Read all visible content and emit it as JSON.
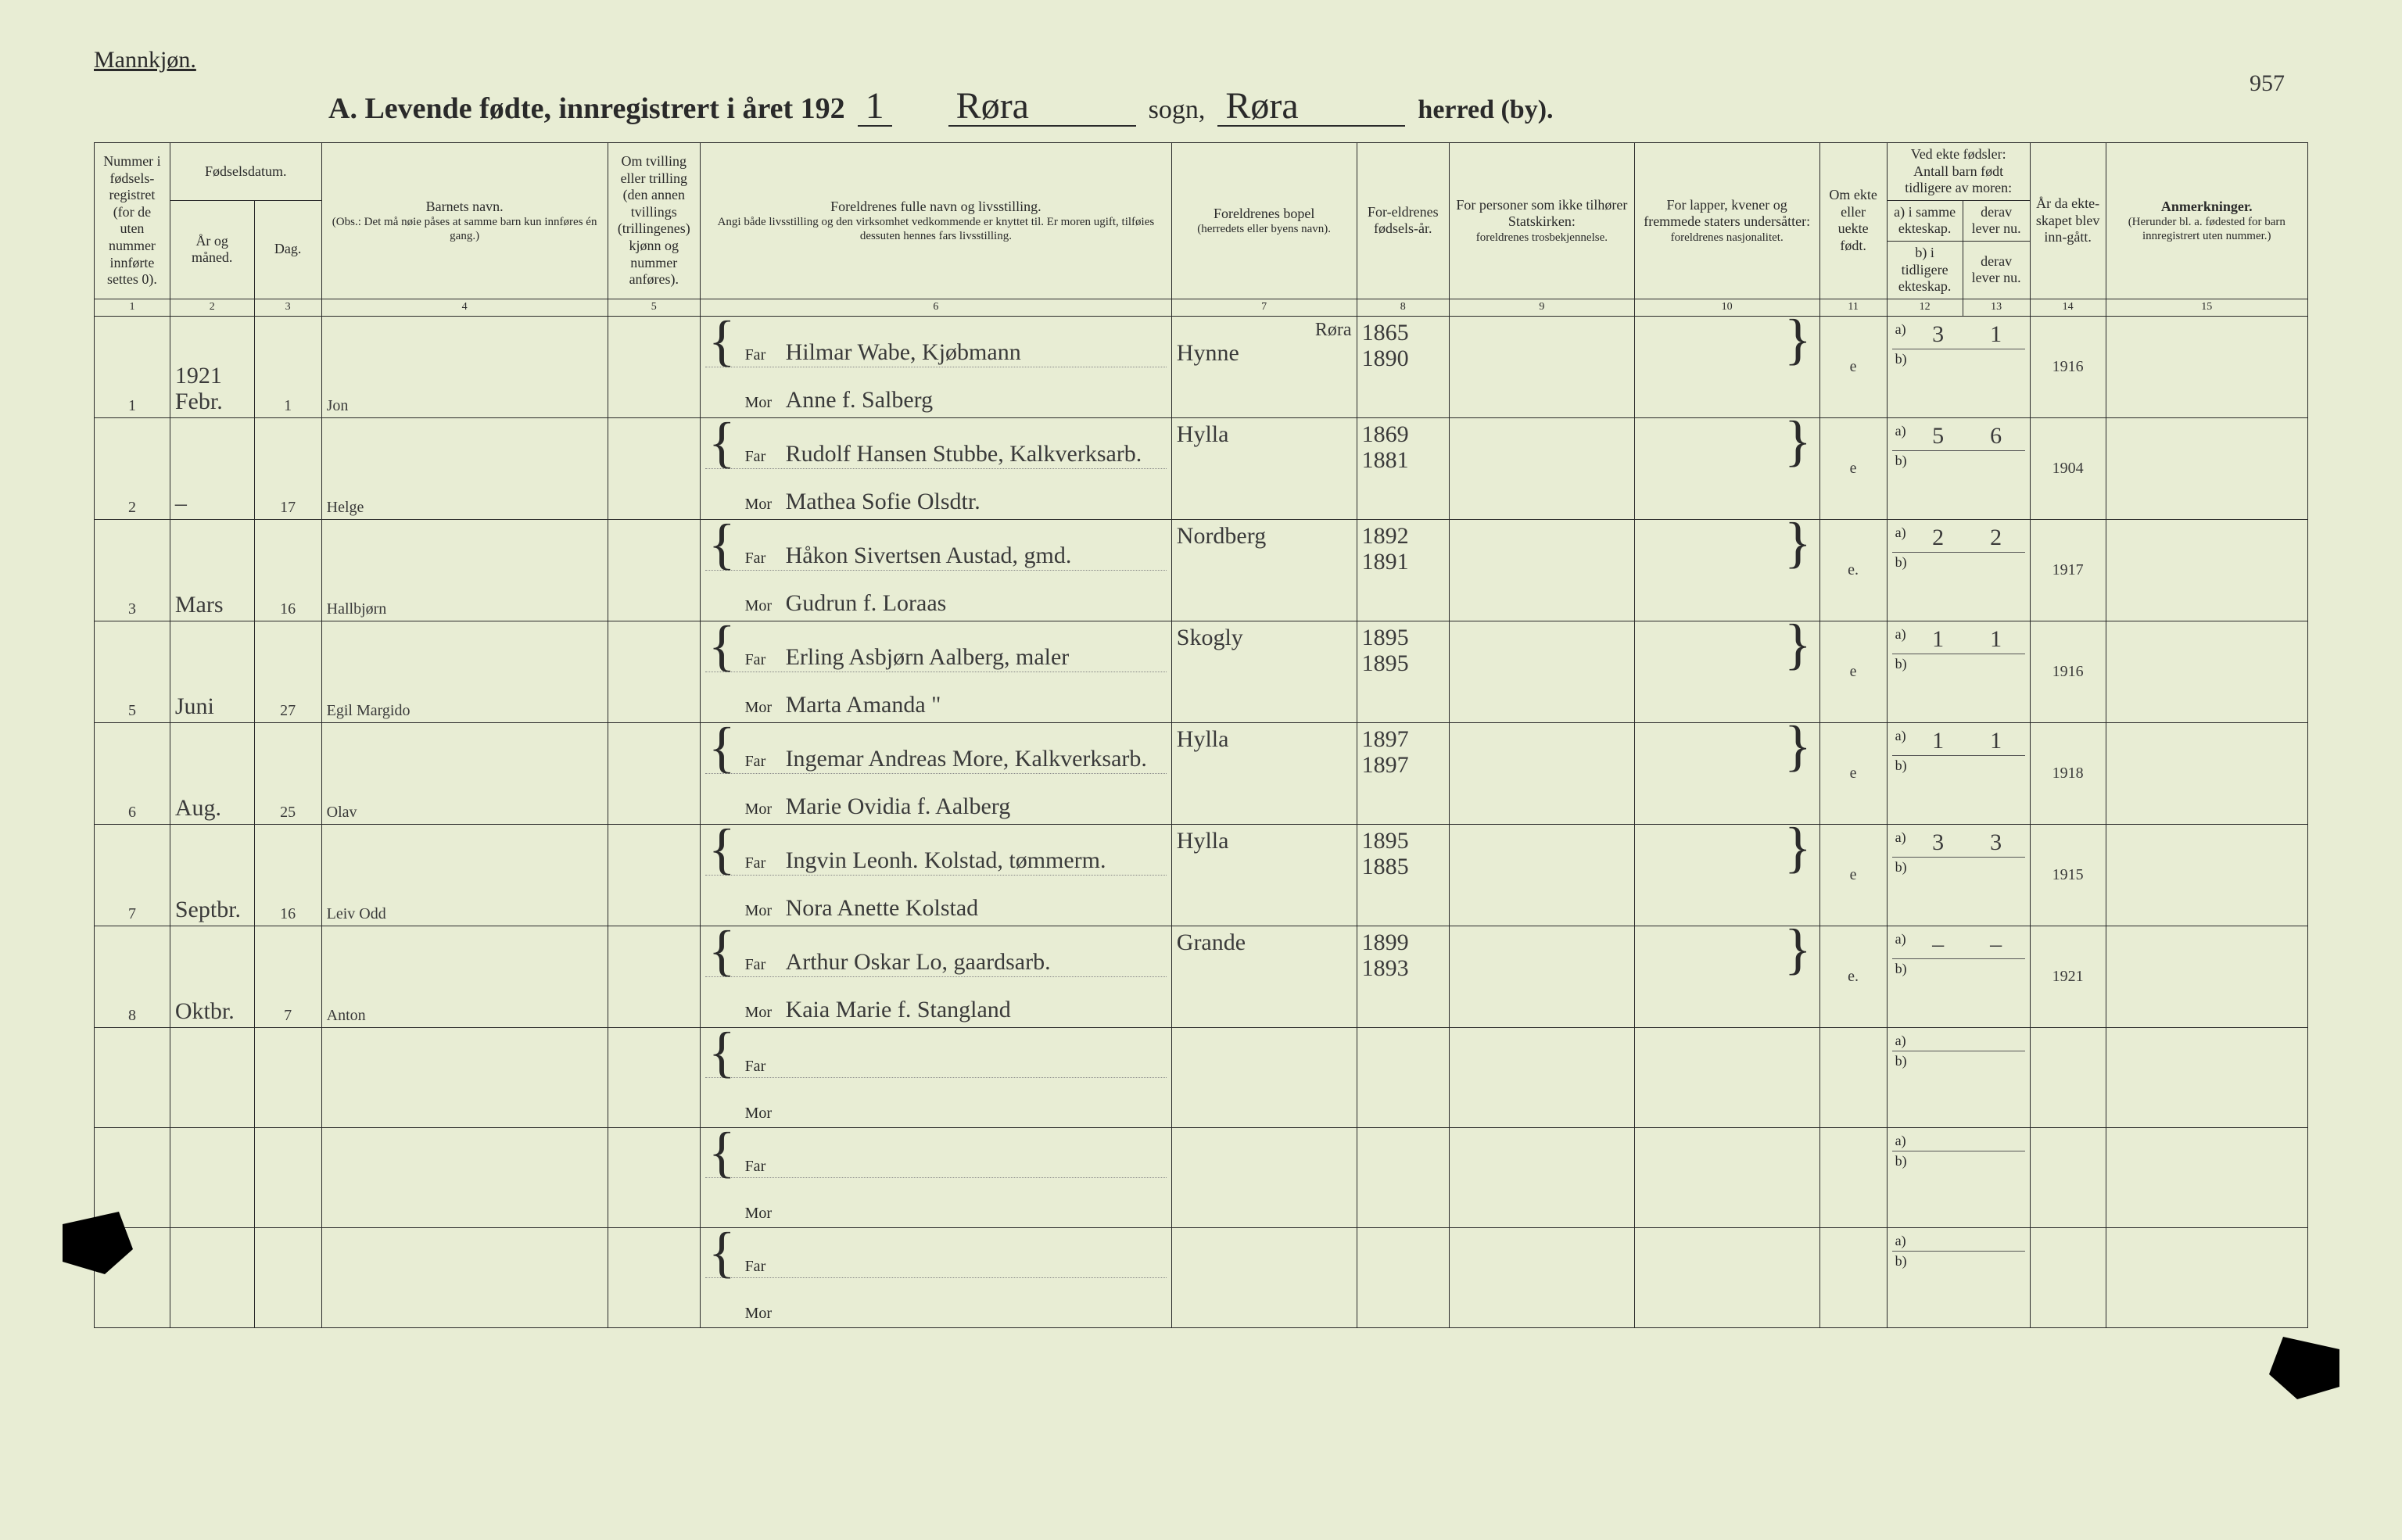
{
  "colors": {
    "paper": "#e8edd4",
    "ink": "#2a2a2a",
    "rule": "#2a2a2a",
    "script_ink": "#3a3a3a"
  },
  "typography": {
    "print_family": "Times New Roman",
    "script_family": "Brush Script MT",
    "header_fontsize_pt": 18,
    "colnum_fontsize_pt": 14,
    "body_print_fontsize_pt": 20,
    "script_fontsize_pt": 30,
    "title_fontsize_pt": 38
  },
  "page_number": "957",
  "header": {
    "gender": "Mannkjøn.",
    "title_prefix": "A.   Levende fødte, innregistrert i året 192",
    "title_year_suffix": "1",
    "sogn_label": "sogn,",
    "sogn_value": "Røra",
    "herred_label": "herred (by).",
    "herred_value": "Røra"
  },
  "columns": {
    "c1": {
      "num": "1",
      "label": "Nummer i fødsels-registret (for de uten nummer innførte settes 0)."
    },
    "c2_3_group": "Fødselsdatum.",
    "c2": {
      "num": "2",
      "label": "År og måned."
    },
    "c3": {
      "num": "3",
      "label": "Dag."
    },
    "c4": {
      "num": "4",
      "label": "Barnets navn.",
      "sub": "(Obs.: Det må nøie påses at samme barn kun innføres én gang.)"
    },
    "c5": {
      "num": "5",
      "label": "Om tvilling eller trilling (den annen tvillings (trillingenes) kjønn og nummer anføres)."
    },
    "c6": {
      "num": "6",
      "label": "Foreldrenes fulle navn og livsstilling.",
      "sub": "Angi både livsstilling og den virksomhet vedkommende er knyttet til. Er moren ugift, tilføies dessuten hennes fars livsstilling."
    },
    "c7": {
      "num": "7",
      "label": "Foreldrenes bopel",
      "sub": "(herredets eller byens navn)."
    },
    "c8": {
      "num": "8",
      "label": "For-eldrenes fødsels-år."
    },
    "c9": {
      "num": "9",
      "label": "For personer som ikke tilhører Statskirken:",
      "sub": "foreldrenes trosbekjennelse."
    },
    "c10": {
      "num": "10",
      "label": "For lapper, kvener og fremmede staters undersåtter:",
      "sub": "foreldrenes nasjonalitet."
    },
    "c11": {
      "num": "11",
      "label": "Om ekte eller uekte født."
    },
    "c12_13_group": "Ved ekte fødsler: Antall barn født tidligere av moren:",
    "c12": {
      "num": "12",
      "label": "a) i samme ekteskap."
    },
    "c13": {
      "num": "13",
      "label": "derav lever nu."
    },
    "c12b": "b) i tidligere ekteskap.",
    "c13b": "derav lever nu.",
    "c14": {
      "num": "14",
      "label": "År da ekte-skapet blev inn-gått."
    },
    "c15": {
      "num": "15",
      "label": "Anmerkninger.",
      "sub": "(Herunder bl. a. fødested for barn innregistrert uten nummer.)"
    }
  },
  "parent_labels": {
    "far": "Far",
    "mor": "Mor"
  },
  "ab_labels": {
    "a": "a)",
    "b": "b)"
  },
  "top_annotation_c7": "Røra",
  "year_heading": "1921",
  "rows": [
    {
      "num": "1",
      "month": "Febr.",
      "day": "1",
      "child": "Jon",
      "far": "Hilmar Wabe, Kjøbmann",
      "mor": "Anne f. Salberg",
      "bopel": "Hynne",
      "far_year": "1865",
      "mor_year": "1890",
      "ekte": "e",
      "a_same": "3",
      "a_live": "1",
      "marr_year": "1916"
    },
    {
      "num": "2",
      "month": "–",
      "day": "17",
      "child": "Helge",
      "far": "Rudolf Hansen Stubbe, Kalkverksarb.",
      "mor": "Mathea Sofie Olsdtr.",
      "bopel": "Hylla",
      "far_year": "1869",
      "mor_year": "1881",
      "ekte": "e",
      "a_same": "5",
      "a_live": "6",
      "marr_year": "1904"
    },
    {
      "num": "3",
      "month": "Mars",
      "day": "16",
      "child": "Hallbjørn",
      "far": "Håkon Sivertsen Austad, gmd.",
      "mor": "Gudrun f. Loraas",
      "bopel": "Nordberg",
      "far_year": "1892",
      "mor_year": "1891",
      "ekte": "e.",
      "a_same": "2",
      "a_live": "2",
      "marr_year": "1917"
    },
    {
      "num": "5",
      "month": "Juni",
      "day": "27",
      "child": "Egil Margido",
      "far": "Erling Asbjørn Aalberg, maler",
      "mor": "Marta Amanda   \"",
      "bopel": "Skogly",
      "far_year": "1895",
      "mor_year": "1895",
      "ekte": "e",
      "a_same": "1",
      "a_live": "1",
      "marr_year": "1916"
    },
    {
      "num": "6",
      "month": "Aug.",
      "day": "25",
      "child": "Olav",
      "far": "Ingemar Andreas More, Kalkverksarb.",
      "mor": "Marie Ovidia f. Aalberg",
      "bopel": "Hylla",
      "far_year": "1897",
      "mor_year": "1897",
      "ekte": "e",
      "a_same": "1",
      "a_live": "1",
      "marr_year": "1918"
    },
    {
      "num": "7",
      "month": "Septbr.",
      "day": "16",
      "child": "Leiv Odd",
      "far": "Ingvin Leonh. Kolstad, tømmerm.",
      "mor": "Nora Anette Kolstad",
      "bopel": "Hylla",
      "far_year": "1895",
      "mor_year": "1885",
      "ekte": "e",
      "a_same": "3",
      "a_live": "3",
      "marr_year": "1915"
    },
    {
      "num": "8",
      "month": "Oktbr.",
      "day": "7",
      "child": "Anton",
      "far": "Arthur Oskar Lo, gaardsarb.",
      "mor": "Kaia Marie f. Stangland",
      "bopel": "Grande",
      "far_year": "1899",
      "mor_year": "1893",
      "ekte": "e.",
      "a_same": "–",
      "a_live": "–",
      "marr_year": "1921"
    },
    {
      "blank": true
    },
    {
      "blank": true
    },
    {
      "blank": true
    }
  ]
}
